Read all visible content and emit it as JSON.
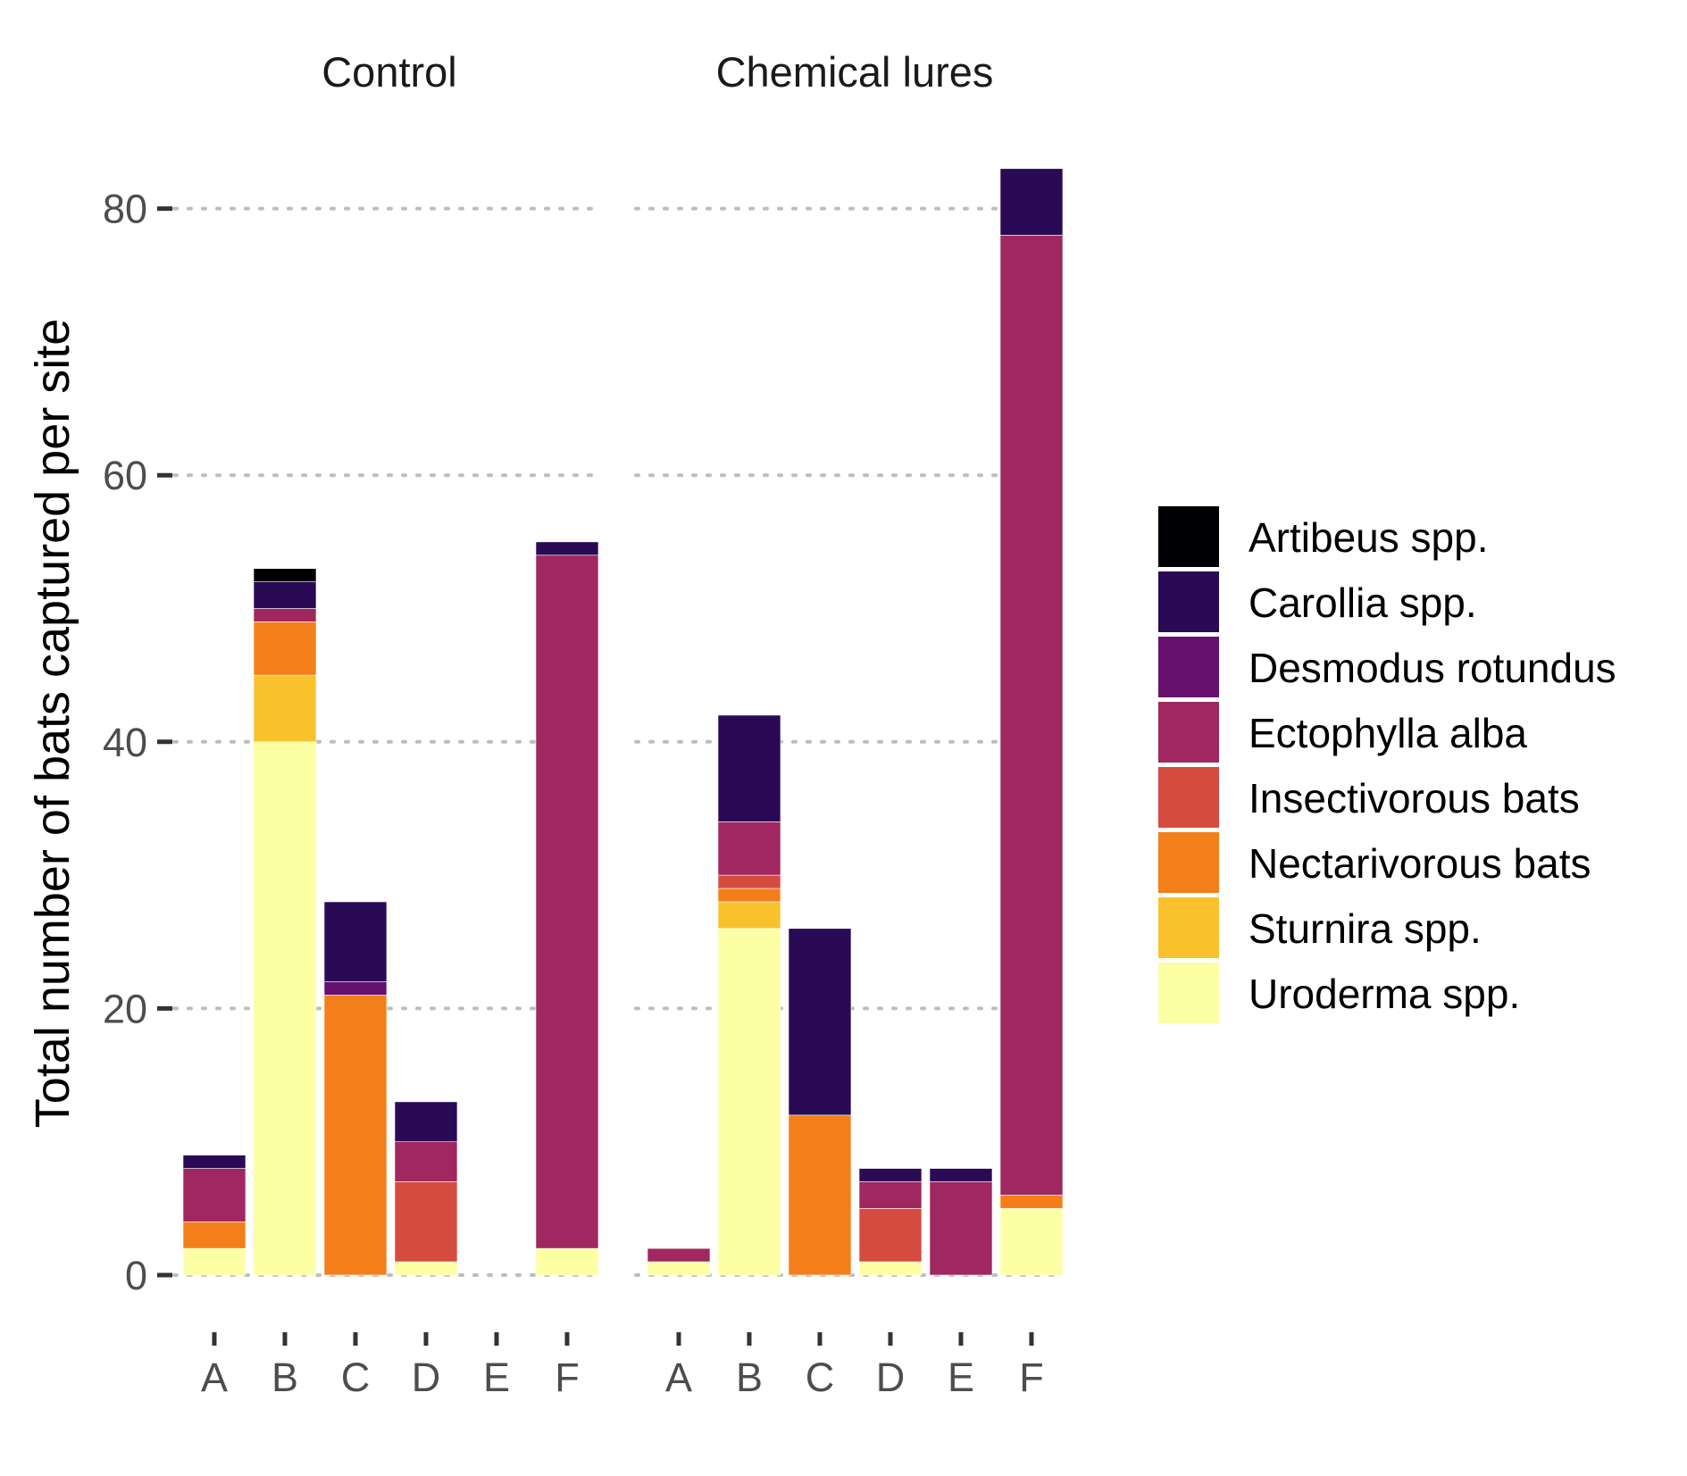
{
  "chart_data": {
    "type": "bar",
    "stacked": true,
    "ylabel": "Total number of bats captured per site",
    "xlabel": "",
    "ylim": [
      0,
      83
    ],
    "yticks": [
      0,
      20,
      40,
      60,
      80
    ],
    "grid": "horizontal dotted",
    "legend_position": "right",
    "categories": [
      "A",
      "B",
      "C",
      "D",
      "E",
      "F"
    ],
    "species": [
      {
        "name": "Artibeus spp.",
        "color": "#000004"
      },
      {
        "name": "Carollia spp.",
        "color": "#2a0a55"
      },
      {
        "name": "Desmodus rotundus",
        "color": "#66116e"
      },
      {
        "name": "Ectophylla alba",
        "color": "#a0275f"
      },
      {
        "name": "Insectivorous bats",
        "color": "#d64b40"
      },
      {
        "name": "Nectarivorous bats",
        "color": "#f47f1a"
      },
      {
        "name": "Sturnira spp.",
        "color": "#f9c22d"
      },
      {
        "name": "Uroderma spp.",
        "color": "#fcffa4"
      }
    ],
    "panels": [
      {
        "title": "Control",
        "series": [
          {
            "name": "Artibeus spp.",
            "values": [
              0,
              1,
              0,
              0,
              0,
              0
            ]
          },
          {
            "name": "Carollia spp.",
            "values": [
              1,
              2,
              6,
              3,
              0,
              1
            ]
          },
          {
            "name": "Desmodus rotundus",
            "values": [
              0,
              0,
              1,
              0,
              0,
              0
            ]
          },
          {
            "name": "Ectophylla alba",
            "values": [
              4,
              1,
              0,
              3,
              0,
              52
            ]
          },
          {
            "name": "Insectivorous bats",
            "values": [
              0,
              0,
              0,
              6,
              0,
              0
            ]
          },
          {
            "name": "Nectarivorous bats",
            "values": [
              2,
              4,
              21,
              0,
              0,
              0
            ]
          },
          {
            "name": "Sturnira spp.",
            "values": [
              0,
              5,
              0,
              0,
              0,
              0
            ]
          },
          {
            "name": "Uroderma spp.",
            "values": [
              2,
              40,
              0,
              1,
              0,
              2
            ]
          }
        ]
      },
      {
        "title": "Chemical lures",
        "series": [
          {
            "name": "Artibeus spp.",
            "values": [
              0,
              0,
              0,
              0,
              0,
              0
            ]
          },
          {
            "name": "Carollia spp.",
            "values": [
              0,
              8,
              14,
              1,
              1,
              5
            ]
          },
          {
            "name": "Desmodus rotundus",
            "values": [
              0,
              0,
              0,
              0,
              0,
              0
            ]
          },
          {
            "name": "Ectophylla alba",
            "values": [
              1,
              4,
              0,
              2,
              7,
              72
            ]
          },
          {
            "name": "Insectivorous bats",
            "values": [
              0,
              1,
              0,
              4,
              0,
              0
            ]
          },
          {
            "name": "Nectarivorous bats",
            "values": [
              0,
              1,
              12,
              0,
              0,
              1
            ]
          },
          {
            "name": "Sturnira spp.",
            "values": [
              0,
              2,
              0,
              0,
              0,
              0
            ]
          },
          {
            "name": "Uroderma spp.",
            "values": [
              1,
              26,
              0,
              1,
              0,
              5
            ]
          }
        ]
      }
    ]
  }
}
